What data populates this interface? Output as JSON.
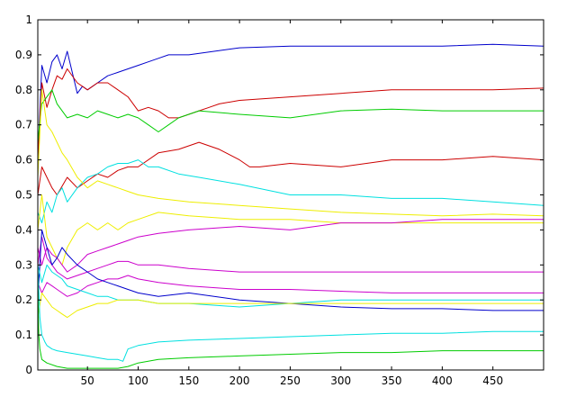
{
  "chart_data": {
    "type": "line",
    "title": "",
    "xlabel": "",
    "ylabel": "",
    "xlim": [
      1,
      500
    ],
    "ylim": [
      0,
      1
    ],
    "grid": false,
    "legend": "none",
    "x_ticks": [
      50,
      100,
      150,
      200,
      250,
      300,
      350,
      400,
      450
    ],
    "y_ticks": [
      0,
      0.1,
      0.2,
      0.3,
      0.4,
      0.5,
      0.6,
      0.7,
      0.8,
      0.9,
      1
    ],
    "x_tick_labels": [
      "50",
      "100",
      "150",
      "200",
      "250",
      "300",
      "350",
      "400",
      "450"
    ],
    "y_tick_labels": [
      "0",
      "0.1",
      "0.2",
      "0.3",
      "0.4",
      "0.5",
      "0.6",
      "0.7",
      "0.8",
      "0.9",
      "1"
    ],
    "series": [
      {
        "color": "#0000cc",
        "x": [
          1,
          5,
          10,
          15,
          20,
          25,
          30,
          35,
          40,
          45,
          50,
          60,
          70,
          80,
          90,
          100,
          110,
          120,
          130,
          150,
          200,
          250,
          300,
          350,
          400,
          450,
          500
        ],
        "y": [
          0.6,
          0.87,
          0.82,
          0.88,
          0.9,
          0.86,
          0.91,
          0.85,
          0.79,
          0.81,
          0.8,
          0.82,
          0.84,
          0.85,
          0.86,
          0.87,
          0.88,
          0.89,
          0.9,
          0.9,
          0.92,
          0.925,
          0.925,
          0.925,
          0.925,
          0.93,
          0.925
        ]
      },
      {
        "color": "#cc0000",
        "x": [
          1,
          5,
          10,
          15,
          20,
          25,
          30,
          40,
          50,
          60,
          70,
          80,
          90,
          100,
          110,
          120,
          130,
          140,
          150,
          160,
          170,
          180,
          200,
          250,
          300,
          350,
          400,
          450,
          500
        ],
        "y": [
          0.6,
          0.82,
          0.75,
          0.8,
          0.84,
          0.83,
          0.86,
          0.82,
          0.8,
          0.82,
          0.82,
          0.8,
          0.78,
          0.74,
          0.75,
          0.74,
          0.72,
          0.72,
          0.73,
          0.74,
          0.75,
          0.76,
          0.77,
          0.78,
          0.79,
          0.8,
          0.8,
          0.8,
          0.805
        ]
      },
      {
        "color": "#00cc00",
        "x": [
          1,
          5,
          10,
          15,
          20,
          25,
          30,
          40,
          50,
          60,
          70,
          80,
          90,
          100,
          110,
          120,
          130,
          140,
          150,
          160,
          200,
          250,
          300,
          350,
          400,
          450,
          500
        ],
        "y": [
          0.65,
          0.76,
          0.78,
          0.8,
          0.76,
          0.74,
          0.72,
          0.73,
          0.72,
          0.74,
          0.73,
          0.72,
          0.73,
          0.72,
          0.7,
          0.68,
          0.7,
          0.72,
          0.73,
          0.74,
          0.73,
          0.72,
          0.74,
          0.745,
          0.74,
          0.74,
          0.74
        ]
      },
      {
        "color": "#cc0000",
        "x": [
          1,
          5,
          10,
          15,
          20,
          30,
          40,
          50,
          60,
          70,
          80,
          90,
          100,
          120,
          140,
          160,
          180,
          200,
          210,
          220,
          250,
          300,
          350,
          400,
          450,
          500
        ],
        "y": [
          0.5,
          0.58,
          0.55,
          0.52,
          0.5,
          0.55,
          0.52,
          0.54,
          0.56,
          0.55,
          0.57,
          0.58,
          0.58,
          0.62,
          0.63,
          0.65,
          0.63,
          0.6,
          0.58,
          0.58,
          0.59,
          0.58,
          0.6,
          0.6,
          0.61,
          0.6
        ]
      },
      {
        "color": "#00e0e0",
        "x": [
          1,
          5,
          10,
          15,
          20,
          25,
          30,
          40,
          50,
          60,
          70,
          80,
          90,
          100,
          110,
          120,
          140,
          160,
          200,
          250,
          300,
          350,
          400,
          450,
          500
        ],
        "y": [
          0.45,
          0.42,
          0.48,
          0.45,
          0.5,
          0.52,
          0.48,
          0.52,
          0.55,
          0.56,
          0.58,
          0.59,
          0.59,
          0.6,
          0.58,
          0.58,
          0.56,
          0.55,
          0.53,
          0.5,
          0.5,
          0.49,
          0.49,
          0.48,
          0.47
        ]
      },
      {
        "color": "#eeee00",
        "x": [
          1,
          5,
          10,
          15,
          20,
          25,
          30,
          40,
          50,
          60,
          70,
          80,
          90,
          100,
          120,
          150,
          200,
          250,
          300,
          350,
          400,
          450,
          500
        ],
        "y": [
          0.55,
          0.8,
          0.7,
          0.68,
          0.65,
          0.62,
          0.6,
          0.55,
          0.52,
          0.54,
          0.53,
          0.52,
          0.51,
          0.5,
          0.49,
          0.48,
          0.47,
          0.46,
          0.45,
          0.445,
          0.44,
          0.445,
          0.44
        ]
      },
      {
        "color": "#eeee00",
        "x": [
          1,
          5,
          10,
          15,
          20,
          25,
          30,
          40,
          50,
          60,
          70,
          80,
          90,
          100,
          120,
          150,
          200,
          250,
          300,
          350,
          400,
          450,
          500
        ],
        "y": [
          0.4,
          0.5,
          0.38,
          0.35,
          0.32,
          0.3,
          0.35,
          0.4,
          0.42,
          0.4,
          0.42,
          0.4,
          0.42,
          0.43,
          0.45,
          0.44,
          0.43,
          0.43,
          0.42,
          0.42,
          0.42,
          0.42,
          0.42
        ]
      },
      {
        "color": "#cc00cc",
        "x": [
          1,
          5,
          10,
          15,
          20,
          25,
          30,
          40,
          50,
          60,
          70,
          80,
          90,
          100,
          120,
          150,
          200,
          250,
          300,
          350,
          400,
          450,
          500
        ],
        "y": [
          0.35,
          0.3,
          0.35,
          0.33,
          0.32,
          0.3,
          0.28,
          0.3,
          0.33,
          0.34,
          0.35,
          0.36,
          0.37,
          0.38,
          0.39,
          0.4,
          0.41,
          0.4,
          0.42,
          0.42,
          0.43,
          0.43,
          0.43
        ]
      },
      {
        "color": "#cc00cc",
        "x": [
          1,
          5,
          10,
          15,
          20,
          25,
          30,
          40,
          50,
          60,
          70,
          80,
          90,
          100,
          120,
          150,
          200,
          250,
          300,
          350,
          400,
          450,
          500
        ],
        "y": [
          0.3,
          0.38,
          0.32,
          0.3,
          0.28,
          0.27,
          0.26,
          0.27,
          0.28,
          0.29,
          0.3,
          0.31,
          0.31,
          0.3,
          0.3,
          0.29,
          0.28,
          0.28,
          0.28,
          0.28,
          0.28,
          0.28,
          0.28
        ]
      },
      {
        "color": "#cc00cc",
        "x": [
          1,
          5,
          10,
          15,
          20,
          25,
          30,
          40,
          50,
          60,
          70,
          80,
          90,
          100,
          120,
          150,
          200,
          250,
          300,
          350,
          400,
          450,
          500
        ],
        "y": [
          0.25,
          0.22,
          0.25,
          0.24,
          0.23,
          0.22,
          0.21,
          0.22,
          0.24,
          0.25,
          0.26,
          0.26,
          0.27,
          0.26,
          0.25,
          0.24,
          0.23,
          0.23,
          0.225,
          0.22,
          0.22,
          0.22,
          0.22
        ]
      },
      {
        "color": "#0000cc",
        "x": [
          1,
          5,
          10,
          15,
          20,
          25,
          30,
          40,
          50,
          60,
          70,
          80,
          90,
          100,
          120,
          150,
          200,
          250,
          300,
          350,
          400,
          450,
          500
        ],
        "y": [
          0.2,
          0.4,
          0.35,
          0.3,
          0.32,
          0.35,
          0.33,
          0.3,
          0.28,
          0.26,
          0.25,
          0.24,
          0.23,
          0.22,
          0.21,
          0.22,
          0.2,
          0.19,
          0.18,
          0.175,
          0.175,
          0.17,
          0.17
        ]
      },
      {
        "color": "#00e0e0",
        "x": [
          1,
          5,
          10,
          15,
          20,
          25,
          30,
          40,
          50,
          60,
          70,
          80,
          90,
          100,
          120,
          150,
          200,
          250,
          300,
          350,
          400,
          450,
          500
        ],
        "y": [
          0.3,
          0.25,
          0.3,
          0.28,
          0.27,
          0.26,
          0.24,
          0.23,
          0.22,
          0.21,
          0.21,
          0.2,
          0.2,
          0.2,
          0.19,
          0.19,
          0.18,
          0.19,
          0.2,
          0.2,
          0.2,
          0.2,
          0.2
        ]
      },
      {
        "color": "#eeee00",
        "x": [
          1,
          5,
          10,
          15,
          20,
          25,
          30,
          40,
          50,
          60,
          70,
          80,
          90,
          100,
          120,
          150,
          200,
          250,
          300,
          350,
          400,
          450,
          500
        ],
        "y": [
          0.15,
          0.22,
          0.2,
          0.18,
          0.17,
          0.16,
          0.15,
          0.17,
          0.18,
          0.19,
          0.19,
          0.2,
          0.2,
          0.2,
          0.19,
          0.19,
          0.19,
          0.19,
          0.19,
          0.19,
          0.19,
          0.19,
          0.19
        ]
      },
      {
        "color": "#00e0e0",
        "x": [
          1,
          3,
          5,
          8,
          10,
          15,
          20,
          30,
          40,
          50,
          60,
          70,
          80,
          85,
          90,
          100,
          120,
          150,
          200,
          250,
          300,
          350,
          400,
          450,
          500
        ],
        "y": [
          0.3,
          0.15,
          0.1,
          0.08,
          0.07,
          0.06,
          0.055,
          0.05,
          0.045,
          0.04,
          0.035,
          0.03,
          0.03,
          0.025,
          0.06,
          0.07,
          0.08,
          0.085,
          0.09,
          0.095,
          0.1,
          0.105,
          0.105,
          0.11,
          0.11
        ]
      },
      {
        "color": "#00cc00",
        "x": [
          1,
          2,
          3,
          5,
          10,
          20,
          30,
          40,
          50,
          60,
          70,
          80,
          90,
          100,
          120,
          150,
          200,
          250,
          300,
          350,
          400,
          450,
          500
        ],
        "y": [
          0.25,
          0.1,
          0.06,
          0.03,
          0.02,
          0.01,
          0.005,
          0.005,
          0.005,
          0.005,
          0.005,
          0.005,
          0.01,
          0.02,
          0.03,
          0.035,
          0.04,
          0.045,
          0.05,
          0.05,
          0.055,
          0.055,
          0.055
        ]
      }
    ]
  }
}
